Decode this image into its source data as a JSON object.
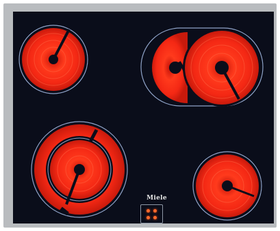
{
  "appliance": {
    "brand": "Miele",
    "zone_color": "#f12a18",
    "glass_color": "#0a0d1a",
    "frame_color": "#b9bcbf"
  },
  "controls": [
    {
      "icon": "touch-control-dot"
    },
    {
      "icon": "touch-control-dot"
    },
    {
      "icon": "touch-control-dot"
    },
    {
      "icon": "touch-control-dot"
    }
  ]
}
